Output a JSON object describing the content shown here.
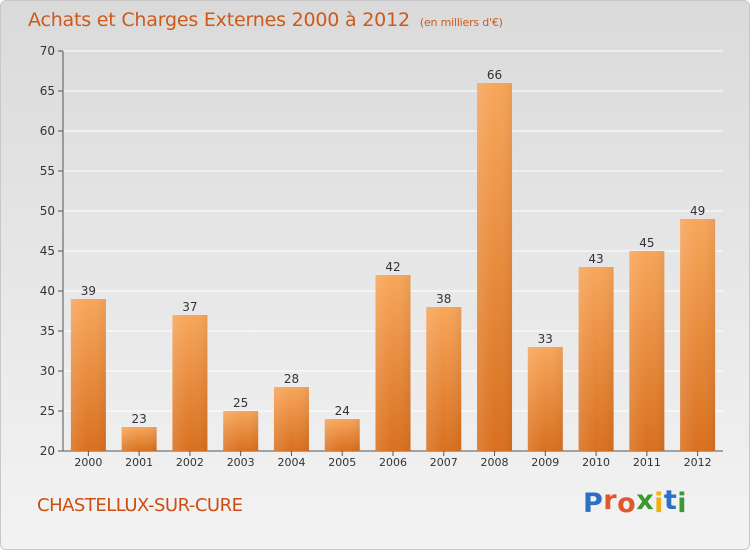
{
  "title": "Achats et Charges Externes 2000 à 2012",
  "subtitle": "(en milliers d'€)",
  "town": "CHASTELLUX-SUR-CURE",
  "logo": {
    "letters": [
      "P",
      "r",
      "o",
      "x",
      "i",
      "t",
      "i"
    ],
    "colors": [
      "#2d6fc4",
      "#e0572a",
      "#e0572a",
      "#3a9a2e",
      "#f0b010",
      "#2d6fc4",
      "#3a9a2e"
    ]
  },
  "colors": {
    "bar_top": "#f7a65a",
    "bar_bottom": "#d9701f",
    "accent": "#cc5a1a"
  },
  "chart_data": {
    "type": "bar",
    "categories": [
      "2000",
      "2001",
      "2002",
      "2003",
      "2004",
      "2005",
      "2006",
      "2007",
      "2008",
      "2009",
      "2010",
      "2011",
      "2012"
    ],
    "values": [
      39,
      23,
      37,
      25,
      28,
      24,
      42,
      38,
      66,
      33,
      43,
      45,
      49
    ],
    "data_labels": [
      "39",
      "23",
      "37",
      "25",
      "28",
      "24",
      "42",
      "38",
      "66",
      "33",
      "43",
      "45",
      "49"
    ],
    "ylim": [
      20,
      70
    ],
    "yticks": [
      "20",
      "25",
      "30",
      "35",
      "40",
      "45",
      "50",
      "55",
      "60",
      "65",
      "70"
    ],
    "grid": true,
    "legend": "none"
  }
}
